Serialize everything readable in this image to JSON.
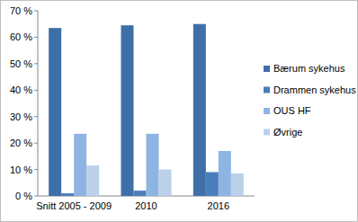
{
  "chart_data": {
    "type": "bar",
    "categories": [
      "Snitt 2005 - 2009",
      "2010",
      "2016"
    ],
    "series": [
      {
        "name": "Bærum sykehus",
        "color": "#3f6fa8",
        "values": [
          63.5,
          64.5,
          65
        ]
      },
      {
        "name": "Drammen sykehus",
        "color": "#4a7ebb",
        "values": [
          1,
          2,
          9
        ]
      },
      {
        "name": "OUS HF",
        "color": "#8db4e2",
        "values": [
          23.5,
          23.5,
          17
        ]
      },
      {
        "name": "Øvrige",
        "color": "#bcd0ea",
        "values": [
          11.5,
          10,
          8.5
        ]
      }
    ],
    "ylim": [
      0,
      70
    ],
    "yticks": [
      {
        "value": 0,
        "label": "0 %"
      },
      {
        "value": 10,
        "label": "10 %"
      },
      {
        "value": 20,
        "label": "20 %"
      },
      {
        "value": 30,
        "label": "30 %"
      },
      {
        "value": 40,
        "label": "40 %"
      },
      {
        "value": 50,
        "label": "50 %"
      },
      {
        "value": 60,
        "label": "60 %"
      },
      {
        "value": 70,
        "label": "70 %"
      }
    ],
    "grid": false,
    "legend": "right"
  }
}
